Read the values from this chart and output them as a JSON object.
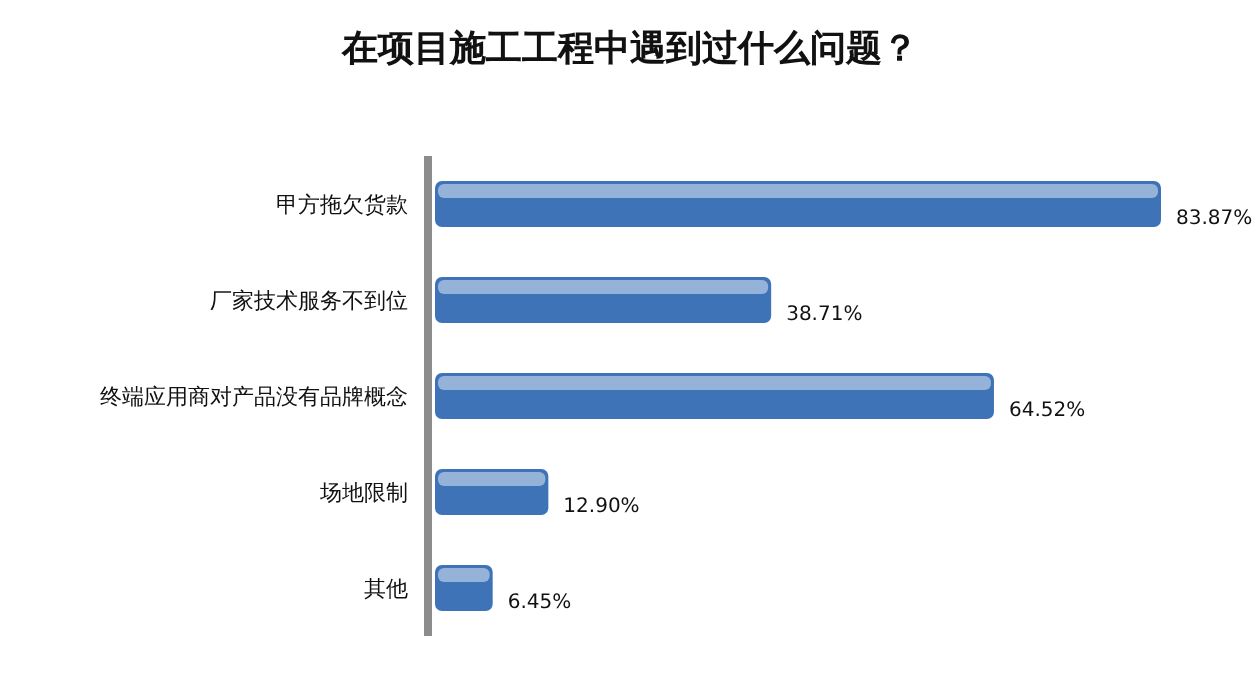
{
  "chart_data": {
    "type": "bar",
    "orientation": "horizontal",
    "title": "在项目施工工程中遇到过什么问题？",
    "categories": [
      "甲方拖欠货款",
      "厂家技术服务不到位",
      "终端应用商对产品没有品牌概念",
      "场地限制",
      "其他"
    ],
    "values": [
      83.87,
      38.71,
      64.52,
      12.9,
      6.45
    ],
    "value_labels": [
      "83.87%",
      "38.71%",
      "64.52%",
      "12.90%",
      "6.45%"
    ],
    "color": "#3f73b8"
  }
}
